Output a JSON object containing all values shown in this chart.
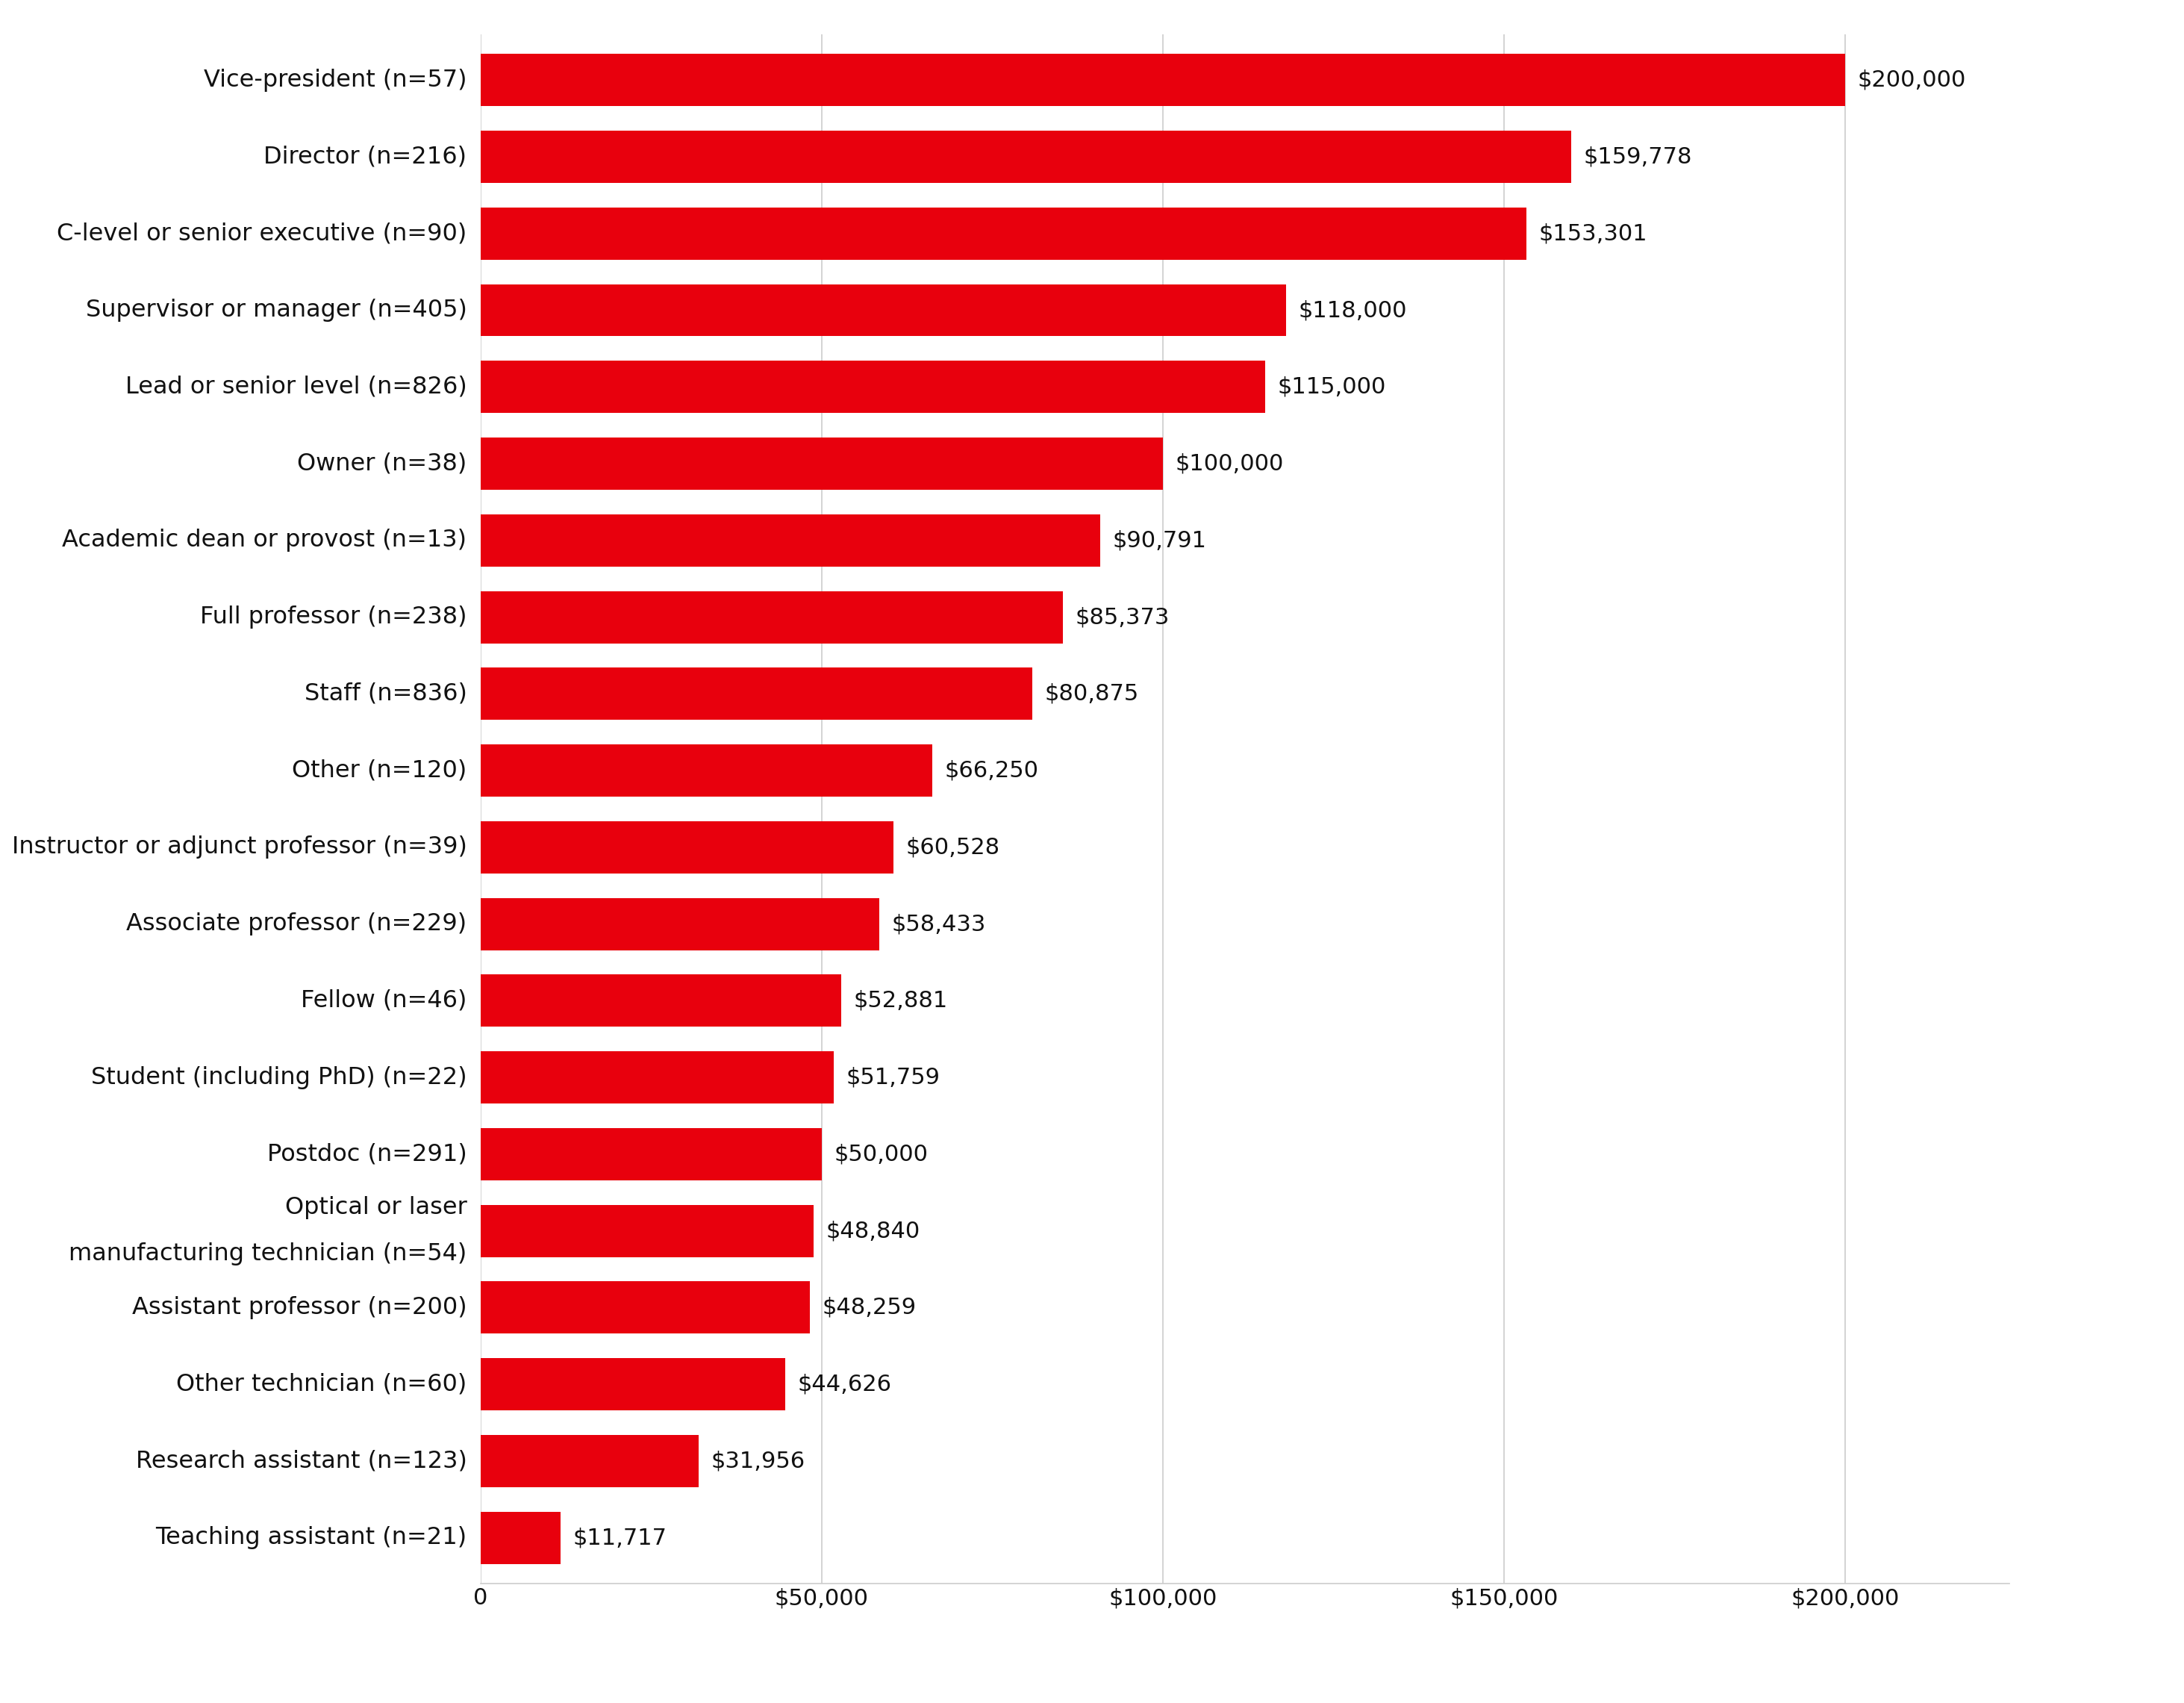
{
  "labels": [
    "Teaching assistant (n=21)",
    "Research assistant (n=123)",
    "Other technician (n=60)",
    "Assistant professor (n=200)",
    "Optical or laser\nmanufacturing technician (n=54)",
    "Postdoc (n=291)",
    "Student (including PhD) (n=22)",
    "Fellow (n=46)",
    "Associate professor (n=229)",
    "Instructor or adjunct professor (n=39)",
    "Other (n=120)",
    "Staff (n=836)",
    "Full professor (n=238)",
    "Academic dean or provost (n=13)",
    "Owner (n=38)",
    "Lead or senior level (n=826)",
    "Supervisor or manager (n=405)",
    "C-level or senior executive (n=90)",
    "Director (n=216)",
    "Vice-president (n=57)"
  ],
  "values": [
    11717,
    31956,
    44626,
    48259,
    48840,
    50000,
    51759,
    52881,
    58433,
    60528,
    66250,
    80875,
    85373,
    90791,
    100000,
    115000,
    118000,
    153301,
    159778,
    200000
  ],
  "value_labels": [
    "$11,717",
    "$31,956",
    "$44,626",
    "$48,259",
    "$48,840",
    "$50,000",
    "$51,759",
    "$52,881",
    "$58,433",
    "$60,528",
    "$66,250",
    "$80,875",
    "$85,373",
    "$90,791",
    "$100,000",
    "$115,000",
    "$118,000",
    "$153,301",
    "$159,778",
    "$200,000"
  ],
  "bar_color": "#e8000d",
  "background_color": "#ffffff",
  "xlim_max": 200000,
  "xlim_display_max": 224000,
  "xtick_values": [
    0,
    50000,
    100000,
    150000,
    200000
  ],
  "xtick_labels": [
    "0",
    "$50,000",
    "$100,000",
    "$150,000",
    "$200,000"
  ],
  "grid_color": "#cccccc",
  "text_color": "#111111",
  "label_fontsize": 23,
  "value_fontsize": 22,
  "tick_fontsize": 22,
  "bar_height": 0.68,
  "figure_width": 29.26,
  "figure_height": 22.81
}
